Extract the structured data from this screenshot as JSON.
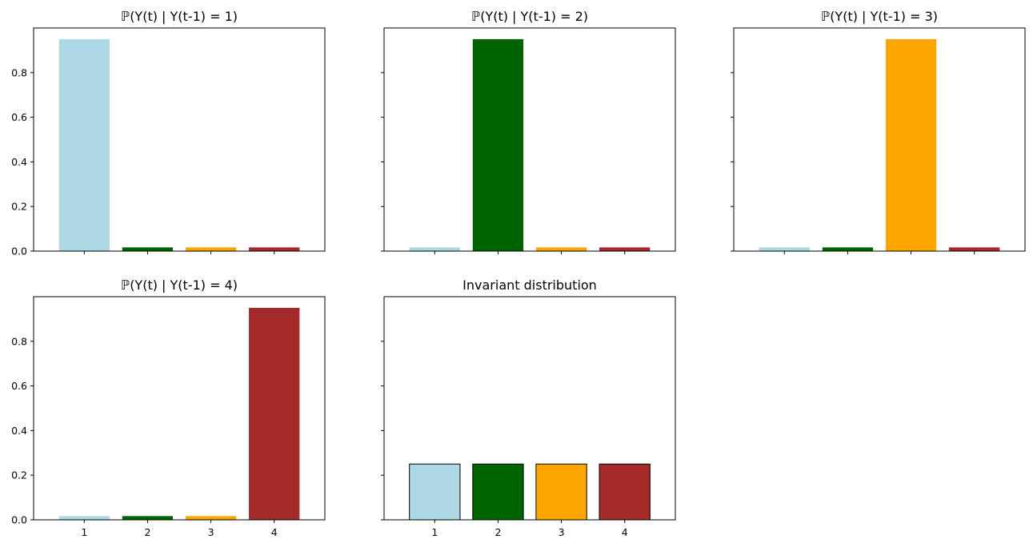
{
  "figure": {
    "background": "#ffffff",
    "shared_y_axis": true,
    "shared_x_axis": true
  },
  "chart_data": [
    {
      "type": "bar",
      "title": "ℙ(Y(t) | Y(t-1) = 1)",
      "categories": [
        "1",
        "2",
        "3",
        "4"
      ],
      "values": [
        0.95,
        0.0167,
        0.0167,
        0.0167
      ],
      "colors": [
        "#add8e6",
        "#006400",
        "#ffa500",
        "#a52a2a"
      ],
      "bar_edge": "none",
      "ylim": [
        0,
        1.0
      ],
      "yticks": [
        "0.0",
        "0.2",
        "0.4",
        "0.6",
        "0.8"
      ],
      "show_ytick_labels": true,
      "show_xtick_labels": false,
      "xlabel": "",
      "ylabel": ""
    },
    {
      "type": "bar",
      "title": "ℙ(Y(t) | Y(t-1) = 2)",
      "categories": [
        "1",
        "2",
        "3",
        "4"
      ],
      "values": [
        0.0167,
        0.95,
        0.0167,
        0.0167
      ],
      "colors": [
        "#add8e6",
        "#006400",
        "#ffa500",
        "#a52a2a"
      ],
      "bar_edge": "none",
      "ylim": [
        0,
        1.0
      ],
      "yticks": [
        "0.0",
        "0.2",
        "0.4",
        "0.6",
        "0.8"
      ],
      "show_ytick_labels": false,
      "show_xtick_labels": false,
      "xlabel": "",
      "ylabel": ""
    },
    {
      "type": "bar",
      "title": "ℙ(Y(t) | Y(t-1) = 3)",
      "categories": [
        "1",
        "2",
        "3",
        "4"
      ],
      "values": [
        0.0167,
        0.0167,
        0.95,
        0.0167
      ],
      "colors": [
        "#add8e6",
        "#006400",
        "#ffa500",
        "#a52a2a"
      ],
      "bar_edge": "none",
      "ylim": [
        0,
        1.0
      ],
      "yticks": [
        "0.0",
        "0.2",
        "0.4",
        "0.6",
        "0.8"
      ],
      "show_ytick_labels": false,
      "show_xtick_labels": false,
      "xlabel": "",
      "ylabel": ""
    },
    {
      "type": "bar",
      "title": "ℙ(Y(t) | Y(t-1) = 4)",
      "categories": [
        "1",
        "2",
        "3",
        "4"
      ],
      "values": [
        0.0167,
        0.0167,
        0.0167,
        0.95
      ],
      "colors": [
        "#add8e6",
        "#006400",
        "#ffa500",
        "#a52a2a"
      ],
      "bar_edge": "none",
      "ylim": [
        0,
        1.0
      ],
      "yticks": [
        "0.0",
        "0.2",
        "0.4",
        "0.6",
        "0.8"
      ],
      "show_ytick_labels": true,
      "show_xtick_labels": true,
      "xlabel": "",
      "ylabel": ""
    },
    {
      "type": "bar",
      "title": "Invariant distribution",
      "categories": [
        "1",
        "2",
        "3",
        "4"
      ],
      "values": [
        0.25,
        0.25,
        0.25,
        0.25
      ],
      "colors": [
        "#add8e6",
        "#006400",
        "#ffa500",
        "#a52a2a"
      ],
      "bar_edge": "#000000",
      "ylim": [
        0,
        1.0
      ],
      "yticks": [
        "0.0",
        "0.2",
        "0.4",
        "0.6",
        "0.8"
      ],
      "show_ytick_labels": false,
      "show_xtick_labels": true,
      "xlabel": "",
      "ylabel": ""
    }
  ]
}
